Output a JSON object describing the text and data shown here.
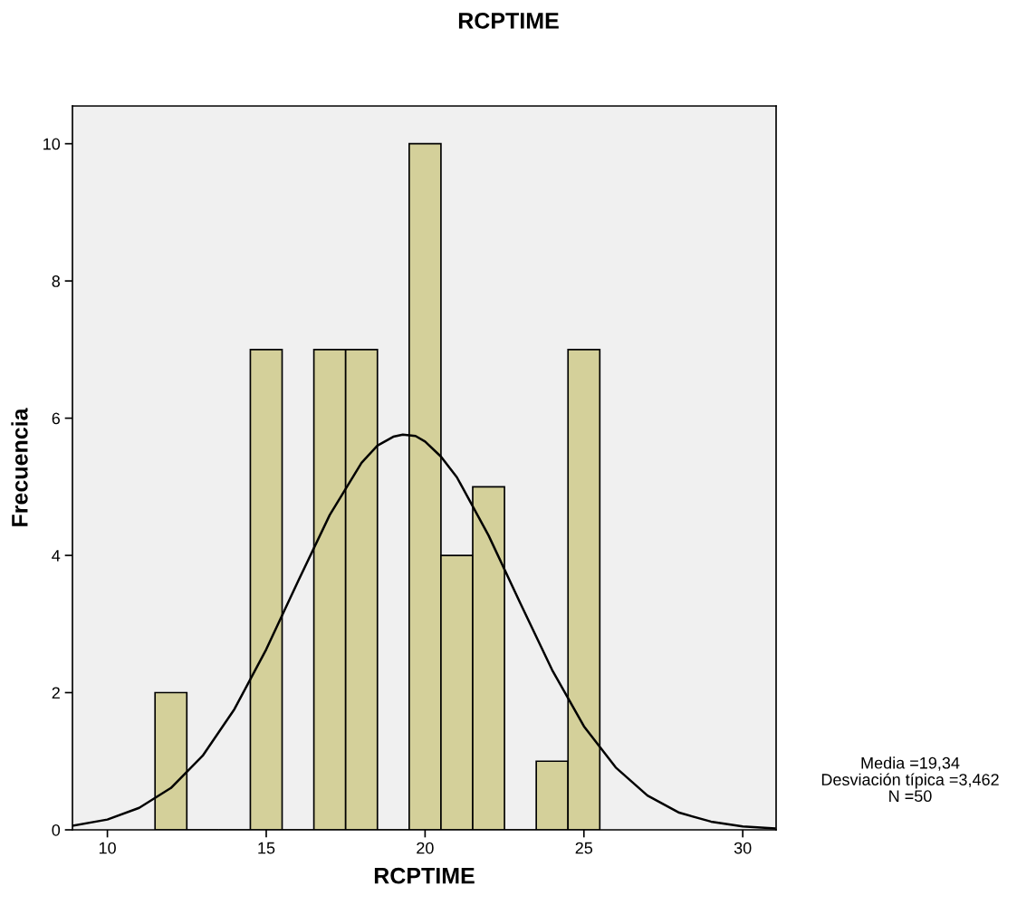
{
  "chart_data": {
    "type": "histogram",
    "title": "RCPTIME",
    "xlabel": "RCPTIME",
    "ylabel": "Frecuencia",
    "series": [
      {
        "color": "#d4d09a",
        "bins": [
          11.5,
          12.5,
          13.5,
          14.5,
          15.5,
          16.5,
          17.5,
          18.5,
          19.5,
          20.5,
          21.5,
          22.5,
          23.5,
          24.5,
          25.5
        ],
        "values": [
          2,
          0,
          0,
          7,
          0,
          7,
          7,
          0,
          10,
          4,
          5,
          0,
          1,
          7
        ]
      },
      {
        "type": "line",
        "color": "#000000",
        "x": [
          8.9,
          10,
          11,
          12,
          13,
          14,
          15,
          16,
          17,
          18,
          18.5,
          19,
          19.3,
          19.7,
          20,
          20.5,
          21,
          22,
          23,
          24,
          25,
          26,
          27,
          28,
          29,
          30,
          31
        ],
        "values": [
          0.06,
          0.15,
          0.32,
          0.61,
          1.08,
          1.76,
          2.63,
          3.62,
          4.59,
          5.35,
          5.6,
          5.73,
          5.76,
          5.74,
          5.66,
          5.44,
          5.14,
          4.29,
          3.3,
          2.33,
          1.51,
          0.91,
          0.5,
          0.25,
          0.12,
          0.05,
          0.02
        ]
      }
    ],
    "xlim": [
      8.9,
      31.05
    ],
    "ylim": [
      0,
      10.55
    ],
    "xticks": [
      10,
      15,
      20,
      25,
      30
    ],
    "yticks": [
      0,
      2,
      4,
      6,
      8,
      10
    ],
    "grid": false,
    "legend": false,
    "annotations": [
      "Media =19,34",
      "Desviación típica =3,462",
      "N =50"
    ]
  }
}
